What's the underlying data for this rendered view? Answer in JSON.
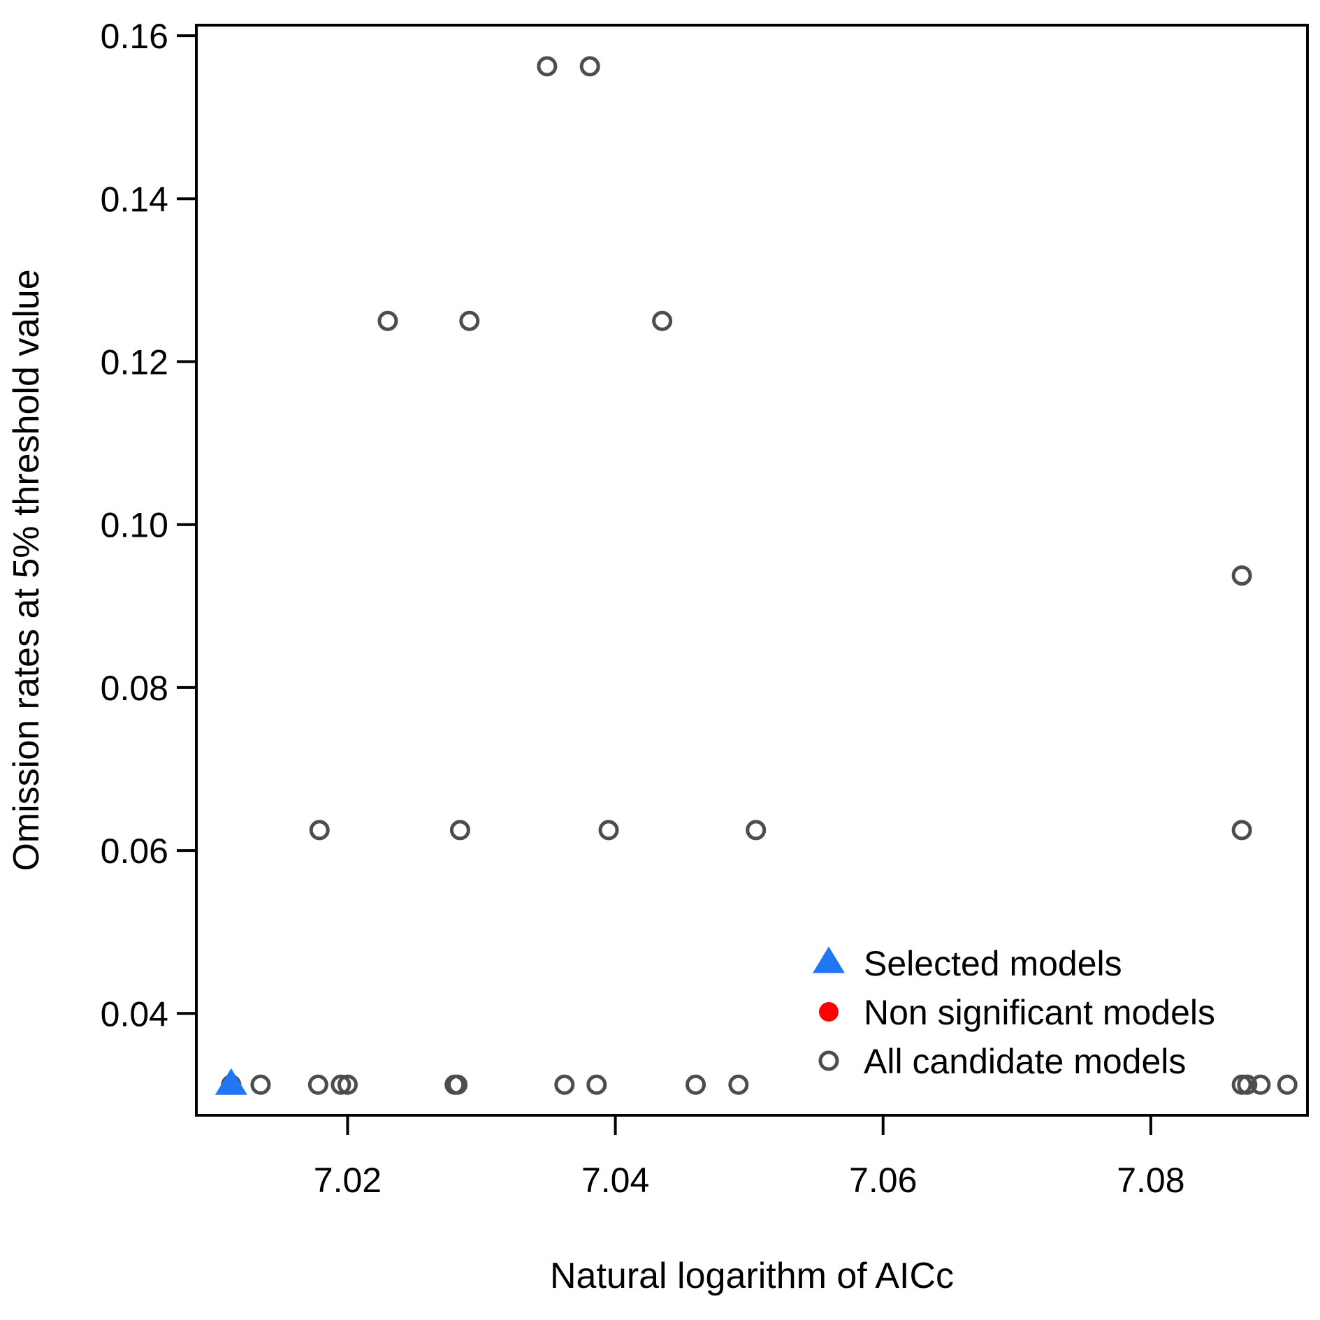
{
  "chart_data": {
    "type": "scatter",
    "title": "",
    "xlabel": "Natural logarithm of AICc",
    "ylabel": "Omission rates at 5% threshold value",
    "xlim": [
      7.0087,
      7.0917
    ],
    "ylim": [
      0.0275,
      0.1613
    ],
    "xticks": [
      7.02,
      7.04,
      7.06,
      7.08
    ],
    "xtick_labels": [
      "7.02",
      "7.04",
      "7.06",
      "7.08"
    ],
    "yticks": [
      0.04,
      0.06,
      0.08,
      0.1,
      0.12,
      0.14,
      0.16
    ],
    "ytick_labels": [
      "0.04",
      "0.06",
      "0.08",
      "0.10",
      "0.12",
      "0.14",
      "0.16"
    ],
    "grid": false,
    "legend_position": "bottom-right",
    "series": [
      {
        "name": "All candidate models",
        "marker": "open-circle",
        "color": "#4d4d4d",
        "points": [
          {
            "x": 7.0113,
            "y": 0.03125
          },
          {
            "x": 7.0135,
            "y": 0.03125
          },
          {
            "x": 7.0178,
            "y": 0.03125
          },
          {
            "x": 7.0195,
            "y": 0.03125
          },
          {
            "x": 7.02,
            "y": 0.03125
          },
          {
            "x": 7.028,
            "y": 0.03125
          },
          {
            "x": 7.0282,
            "y": 0.03125
          },
          {
            "x": 7.0362,
            "y": 0.03125
          },
          {
            "x": 7.0386,
            "y": 0.03125
          },
          {
            "x": 7.046,
            "y": 0.03125
          },
          {
            "x": 7.0492,
            "y": 0.03125
          },
          {
            "x": 7.0868,
            "y": 0.03125
          },
          {
            "x": 7.0872,
            "y": 0.03125
          },
          {
            "x": 7.0882,
            "y": 0.03125
          },
          {
            "x": 7.0902,
            "y": 0.03125
          },
          {
            "x": 7.0179,
            "y": 0.0625
          },
          {
            "x": 7.0284,
            "y": 0.0625
          },
          {
            "x": 7.0395,
            "y": 0.0625
          },
          {
            "x": 7.0505,
            "y": 0.0625
          },
          {
            "x": 7.0868,
            "y": 0.0625
          },
          {
            "x": 7.0868,
            "y": 0.09375
          },
          {
            "x": 7.023,
            "y": 0.125
          },
          {
            "x": 7.0291,
            "y": 0.125
          },
          {
            "x": 7.0435,
            "y": 0.125
          },
          {
            "x": 7.0349,
            "y": 0.15625
          },
          {
            "x": 7.0381,
            "y": 0.15625
          }
        ]
      },
      {
        "name": "Non significant models",
        "marker": "filled-circle",
        "color": "#ff0000",
        "points": []
      },
      {
        "name": "Selected models",
        "marker": "filled-triangle",
        "color": "#1f77f4",
        "points": [
          {
            "x": 7.0113,
            "y": 0.03125
          }
        ]
      }
    ],
    "legend": [
      {
        "label": "Selected models",
        "marker": "filled-triangle",
        "color": "#1f77f4"
      },
      {
        "label": "Non significant models",
        "marker": "filled-circle",
        "color": "#ff0000"
      },
      {
        "label": "All candidate models",
        "marker": "open-circle",
        "color": "#4d4d4d"
      }
    ]
  }
}
